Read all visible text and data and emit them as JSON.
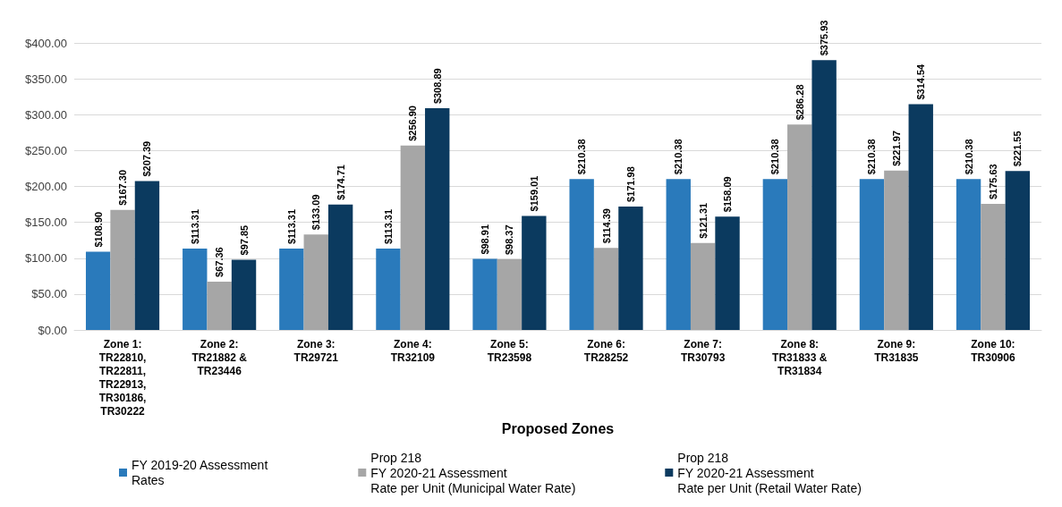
{
  "chart_data": {
    "type": "bar",
    "categories": [
      "Zone 1:\nTR22810,\nTR22811,\nTR22913,\nTR30186,\nTR30222",
      "Zone 2:\nTR21882 &\nTR23446",
      "Zone 3:\nTR29721",
      "Zone 4:\nTR32109",
      "Zone 5:\nTR23598",
      "Zone 6:\nTR28252",
      "Zone 7:\nTR30793",
      "Zone 8:\nTR31833 &\nTR31834",
      "Zone 9:\nTR31835",
      "Zone 10:\nTR30906"
    ],
    "xlabel": "Proposed Zones",
    "series": [
      {
        "name": "FY 2019-20 Assessment\nRates",
        "color": "#2a7abb",
        "values": [
          108.9,
          113.31,
          113.31,
          113.31,
          98.91,
          210.38,
          210.38,
          210.38,
          210.38,
          210.38
        ],
        "value_labels": [
          "$108.90",
          "$113.31",
          "$113.31",
          "$113.31",
          "$98.91",
          "$210.38",
          "$210.38",
          "$210.38",
          "$210.38",
          "$210.38"
        ]
      },
      {
        "name": "Prop 218\nFY 2020-21 Assessment\nRate per Unit (Municipal Water Rate)",
        "color": "#a6a6a6",
        "values": [
          167.3,
          67.36,
          133.09,
          256.9,
          98.37,
          114.39,
          121.31,
          286.28,
          221.97,
          175.63
        ],
        "value_labels": [
          "$167.30",
          "$67.36",
          "$133.09",
          "$256.90",
          "$98.37",
          "$114.39",
          "$121.31",
          "$286.28",
          "$221.97",
          "$175.63"
        ]
      },
      {
        "name": "Prop 218\nFY 2020-21 Assessment\nRate per Unit (Retail Water Rate)",
        "color": "#0b3a5f",
        "values": [
          207.39,
          97.85,
          174.71,
          308.89,
          159.01,
          171.98,
          158.09,
          375.93,
          314.54,
          221.55
        ],
        "value_labels": [
          "$207.39",
          "$97.85",
          "$174.71",
          "$308.89",
          "$159.01",
          "$171.98",
          "$158.09",
          "$375.93",
          "$314.54",
          "$221.55"
        ]
      }
    ],
    "ylim": [
      0,
      400
    ],
    "yticks": [
      {
        "value": 0,
        "label": "$0.00"
      },
      {
        "value": 50,
        "label": "$50.00"
      },
      {
        "value": 100,
        "label": "$100.00"
      },
      {
        "value": 150,
        "label": "$150.00"
      },
      {
        "value": 200,
        "label": "$200.00"
      },
      {
        "value": 250,
        "label": "$250.00"
      },
      {
        "value": 300,
        "label": "$300.00"
      },
      {
        "value": 350,
        "label": "$350.00"
      },
      {
        "value": 400,
        "label": "$400.00"
      }
    ],
    "grid": "y",
    "legend": "bottom"
  }
}
